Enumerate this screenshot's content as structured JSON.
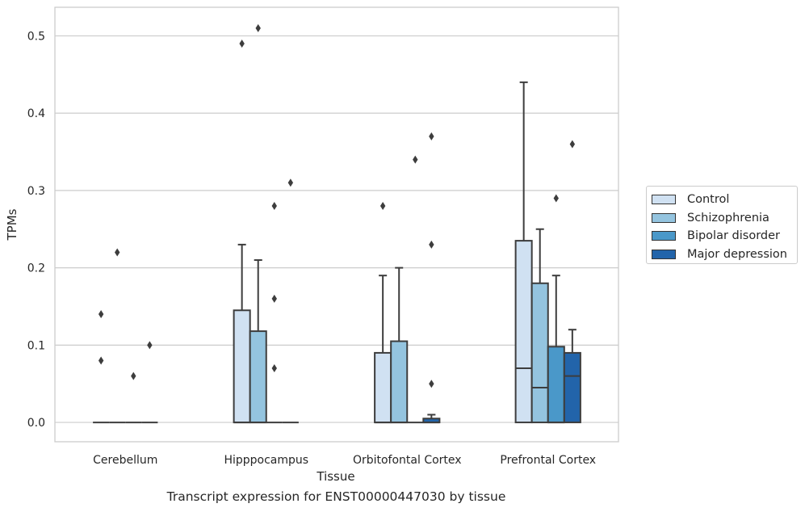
{
  "chart_data": {
    "type": "boxplot",
    "caption": "Transcript expression for ENST00000447030 by tissue",
    "xlabel": "Tissue",
    "ylabel": "TPMs",
    "ylim": [
      -0.025,
      0.537
    ],
    "yticks": [
      "0.0",
      "0.1",
      "0.2",
      "0.3",
      "0.4",
      "0.5"
    ],
    "ytick_values": [
      0,
      0.1,
      0.2,
      0.3,
      0.4,
      0.5
    ],
    "grid": true,
    "legend_position": "right",
    "categories": [
      "Cerebellum",
      "Hipppocampus",
      "Orbitofontal Cortex",
      "Prefrontal Cortex"
    ],
    "series": [
      {
        "name": "Control",
        "color": "#d0e1f2",
        "boxes": [
          {
            "q1": 0,
            "median": 0,
            "q3": 0,
            "whislo": 0,
            "whishi": 0,
            "fliers": [
              0.14,
              0.08
            ]
          },
          {
            "q1": 0,
            "median": 0,
            "q3": 0.145,
            "whislo": 0,
            "whishi": 0.23,
            "fliers": [
              0.49
            ]
          },
          {
            "q1": 0,
            "median": 0,
            "q3": 0.09,
            "whislo": 0,
            "whishi": 0.19,
            "fliers": [
              0.28
            ]
          },
          {
            "q1": 0,
            "median": 0.07,
            "q3": 0.235,
            "whislo": 0,
            "whishi": 0.44,
            "fliers": []
          }
        ]
      },
      {
        "name": "Schizophrenia",
        "color": "#94c4df",
        "boxes": [
          {
            "q1": 0,
            "median": 0,
            "q3": 0,
            "whislo": 0,
            "whishi": 0,
            "fliers": [
              0.22
            ]
          },
          {
            "q1": 0,
            "median": 0,
            "q3": 0.118,
            "whislo": 0,
            "whishi": 0.21,
            "fliers": [
              0.51
            ]
          },
          {
            "q1": 0,
            "median": 0,
            "q3": 0.105,
            "whislo": 0,
            "whishi": 0.2,
            "fliers": []
          },
          {
            "q1": 0,
            "median": 0.045,
            "q3": 0.18,
            "whislo": 0,
            "whishi": 0.25,
            "fliers": []
          }
        ]
      },
      {
        "name": "Bipolar disorder",
        "color": "#4a98c9",
        "boxes": [
          {
            "q1": 0,
            "median": 0,
            "q3": 0,
            "whislo": 0,
            "whishi": 0,
            "fliers": [
              0.06
            ]
          },
          {
            "q1": 0,
            "median": 0,
            "q3": 0,
            "whislo": 0,
            "whishi": 0,
            "fliers": [
              0.28,
              0.16,
              0.07
            ]
          },
          {
            "q1": 0,
            "median": 0,
            "q3": 0,
            "whislo": 0,
            "whishi": 0,
            "fliers": [
              0.34
            ]
          },
          {
            "q1": 0,
            "median": 0,
            "q3": 0.098,
            "whislo": 0,
            "whishi": 0.19,
            "fliers": [
              0.29
            ]
          }
        ]
      },
      {
        "name": "Major depression",
        "color": "#2264aa",
        "boxes": [
          {
            "q1": 0,
            "median": 0,
            "q3": 0,
            "whislo": 0,
            "whishi": 0,
            "fliers": [
              0.1
            ]
          },
          {
            "q1": 0,
            "median": 0,
            "q3": 0,
            "whislo": 0,
            "whishi": 0,
            "fliers": [
              0.31
            ]
          },
          {
            "q1": 0,
            "median": 0,
            "q3": 0.005,
            "whislo": 0,
            "whishi": 0.01,
            "fliers": [
              0.37,
              0.23,
              0.05
            ]
          },
          {
            "q1": 0,
            "median": 0.06,
            "q3": 0.09,
            "whislo": 0,
            "whishi": 0.12,
            "fliers": [
              0.36
            ]
          }
        ]
      }
    ]
  }
}
